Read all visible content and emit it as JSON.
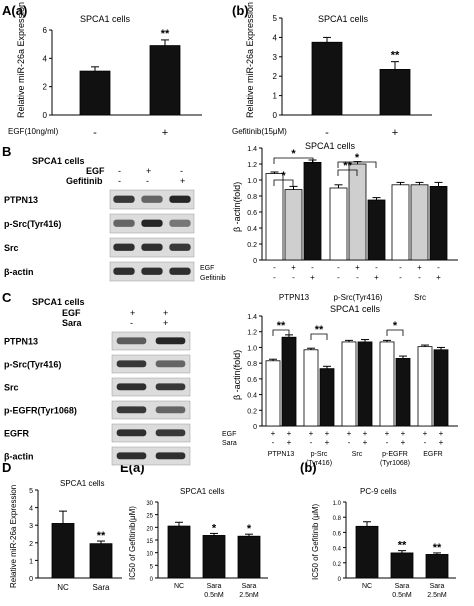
{
  "panels": {
    "A": "A(a)",
    "Ab": "(b)",
    "B": "B",
    "C": "C",
    "D": "D",
    "Ea": "E(a)",
    "Eb": "(b)"
  },
  "cells": {
    "spca1": "SPCA1 cells",
    "spca1_bold": "SPCA1 cells",
    "pc9": "PC-9 cells"
  },
  "axis": {
    "mir26a": "Relative miR-26a Expression",
    "mir26a_b": "Relative miR-26a Expression",
    "mir26a_d": "Relative miR-26a Expression",
    "beta_fold": "β -actin(fold)",
    "ic50": "IC50 of Gefitinib(μM)",
    "ic50_b": "IC50 of Gefitinib (μM)"
  },
  "labels": {
    "egf_dose": "EGF(10ng/ml)",
    "gef_dose": "Gefitinib(15μM)",
    "egf": "EGF",
    "gefitinib": "Gefitinib",
    "sara": "Sara",
    "minus": "-",
    "plus": "+",
    "star2": "**",
    "star1": "*"
  },
  "blotsB": [
    "PTPN13",
    "p-Src(Tyr416)",
    "Src",
    "β-actin"
  ],
  "blotsC": [
    "PTPN13",
    "p-Src(Tyr416)",
    "Src",
    "p-EGFR(Tyr1068)",
    "EGFR",
    "β-actin"
  ],
  "chart_data": [
    {
      "type": "bar",
      "id": "Aa",
      "categories": [
        "-",
        "+"
      ],
      "values": [
        3.1,
        4.9
      ],
      "errors": [
        0.3,
        0.4
      ],
      "ylim": [
        0,
        6
      ],
      "yticks": [
        0,
        2,
        4,
        6
      ],
      "title": "SPCA1 cells",
      "xlabel": "EGF(10ng/ml)",
      "ylabel": "Relative miR-26a Expression"
    },
    {
      "type": "bar",
      "id": "Ab",
      "categories": [
        "-",
        "+"
      ],
      "values": [
        3.75,
        2.35
      ],
      "errors": [
        0.25,
        0.4
      ],
      "ylim": [
        0,
        5
      ],
      "yticks": [
        0,
        1,
        2,
        3,
        4,
        5
      ],
      "title": "SPCA1 cells",
      "xlabel": "Gefitinib(15μM)",
      "ylabel": "Relative miR-26a Expression"
    },
    {
      "type": "bar",
      "id": "B",
      "groups": [
        "PTPN13",
        "p-Src(Tyr416)",
        "Src"
      ],
      "values": [
        [
          1.08,
          0.88,
          1.22
        ],
        [
          0.9,
          1.2,
          0.75
        ],
        [
          0.94,
          0.94,
          0.92
        ]
      ],
      "errors": [
        [
          0.02,
          0.04,
          0.03
        ],
        [
          0.04,
          0.03,
          0.03
        ],
        [
          0.03,
          0.03,
          0.05
        ]
      ],
      "ylim": [
        0,
        1.4
      ],
      "yticks": [
        0,
        0.2,
        0.4,
        0.6,
        0.8,
        1.0,
        1.2,
        1.4
      ],
      "title": "SPCA1 cells",
      "ylabel": "β -actin(fold)",
      "conditions": {
        "EGF": [
          "-",
          "+",
          "-"
        ],
        "Gefitinib": [
          "-",
          "-",
          "+"
        ]
      }
    },
    {
      "type": "bar",
      "id": "C",
      "groups": [
        "PTPN13",
        "p-Src (Tyr416)",
        "Src",
        "p-EGFR (Tyr1068)",
        "EGFR"
      ],
      "values": [
        [
          0.83,
          1.13
        ],
        [
          0.97,
          0.73
        ],
        [
          1.07,
          1.07
        ],
        [
          1.07,
          0.86
        ],
        [
          1.01,
          0.97
        ]
      ],
      "errors": [
        [
          0.02,
          0.03
        ],
        [
          0.02,
          0.03
        ],
        [
          0.02,
          0.03
        ],
        [
          0.02,
          0.03
        ],
        [
          0.02,
          0.03
        ]
      ],
      "ylim": [
        0,
        1.4
      ],
      "yticks": [
        0,
        0.2,
        0.4,
        0.6,
        0.8,
        1.0,
        1.2,
        1.4
      ],
      "title": "SPCA1 cells",
      "ylabel": "β -actin(fold)",
      "conditions": {
        "EGF": [
          "+",
          "+"
        ],
        "Sara": [
          "-",
          "+"
        ]
      }
    },
    {
      "type": "bar",
      "id": "D",
      "categories": [
        "NC",
        "Sara"
      ],
      "values": [
        3.1,
        1.95
      ],
      "errors": [
        0.7,
        0.15
      ],
      "ylim": [
        0,
        5
      ],
      "yticks": [
        0,
        1,
        2,
        3,
        4,
        5
      ],
      "title": "SPCA1 cells",
      "ylabel": "Relative miR-26a Expression"
    },
    {
      "type": "bar",
      "id": "Ea",
      "categories": [
        "NC",
        "Sara\n0.5nM",
        "Sara\n2.5nM"
      ],
      "values": [
        20.5,
        16.8,
        16.5
      ],
      "errors": [
        1.5,
        0.8,
        0.8
      ],
      "ylim": [
        0,
        30
      ],
      "yticks": [
        0,
        5,
        10,
        15,
        20,
        25,
        30
      ],
      "title": "SPCA1 cells",
      "ylabel": "IC50 of Gefitinib(μM)"
    },
    {
      "type": "bar",
      "id": "Eb",
      "categories": [
        "NC",
        "Sara\n0.5nM",
        "Sara\n2.5nM"
      ],
      "values": [
        0.68,
        0.33,
        0.31
      ],
      "errors": [
        0.06,
        0.03,
        0.02
      ],
      "ylim": [
        0,
        1.0
      ],
      "yticks": [
        0,
        0.2,
        0.4,
        0.6,
        0.8,
        1.0
      ],
      "title": "PC-9 cells",
      "ylabel": "IC50 of Gefitinib (μM)"
    }
  ]
}
